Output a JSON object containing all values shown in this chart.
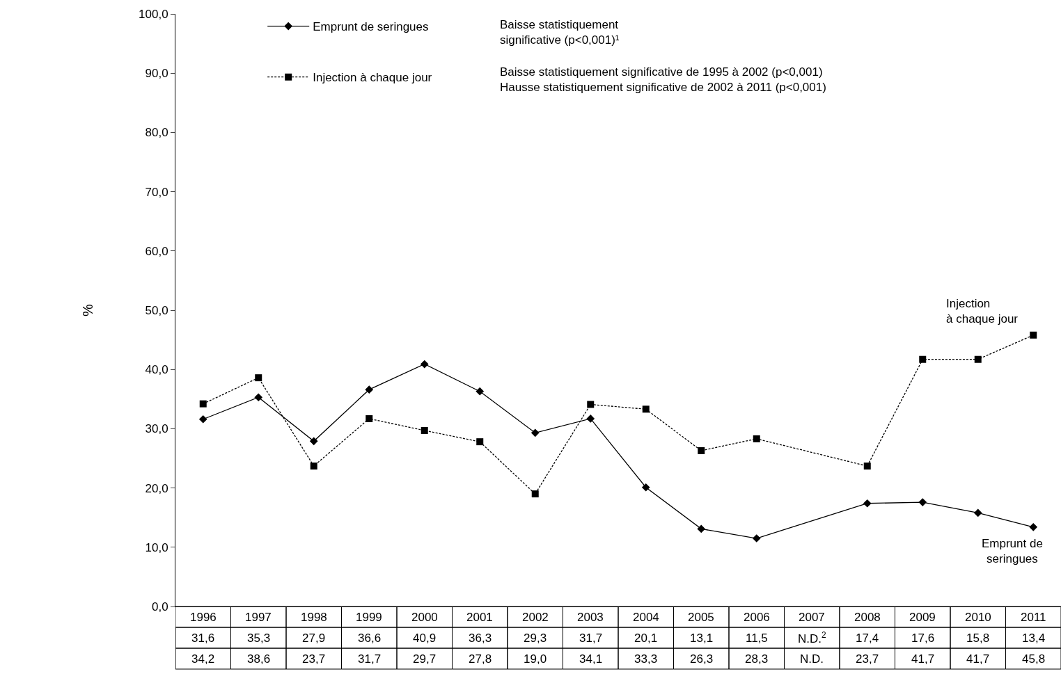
{
  "chart_data": {
    "type": "line",
    "ylabel": "%",
    "categories": [
      "1996",
      "1997",
      "1998",
      "1999",
      "2000",
      "2001",
      "2002",
      "2003",
      "2004",
      "2005",
      "2006",
      "2007",
      "2008",
      "2009",
      "2010",
      "2011"
    ],
    "series": [
      {
        "name": "Emprunt de seringues",
        "color": "#000000",
        "marker": "diamond",
        "line_style": "solid",
        "values": [
          31.6,
          35.3,
          27.9,
          36.6,
          40.9,
          36.3,
          29.3,
          31.7,
          20.1,
          13.1,
          11.5,
          null,
          17.4,
          17.6,
          15.8,
          13.4
        ],
        "value_labels": [
          "31,6",
          "35,3",
          "27,9",
          "36,6",
          "40,9",
          "36,3",
          "29,3",
          "31,7",
          "20,1",
          "13,1",
          "11,5",
          "N.D.$^{2}$",
          "17,4",
          "17,6",
          "15,8",
          "13,4"
        ]
      },
      {
        "name": "Injection à chaque jour",
        "color": "#000000",
        "marker": "square",
        "line_style": "dotted",
        "values": [
          34.2,
          38.6,
          23.7,
          31.7,
          29.7,
          27.8,
          19.0,
          34.1,
          33.3,
          26.3,
          28.3,
          null,
          23.7,
          41.7,
          41.7,
          45.8
        ],
        "value_labels": [
          "34,2",
          "38,6",
          "23,7",
          "31,7",
          "29,7",
          "27,8",
          "19,0",
          "34,1",
          "33,3",
          "26,3",
          "28,3",
          "N.D.",
          "23,7",
          "41,7",
          "41,7",
          "45,8"
        ]
      }
    ],
    "ylim": [
      0,
      100
    ],
    "yticks": [
      {
        "value": 0,
        "label": "0,0"
      },
      {
        "value": 10,
        "label": "10,0"
      },
      {
        "value": 20,
        "label": "20,0"
      },
      {
        "value": 30,
        "label": "30,0"
      },
      {
        "value": 40,
        "label": "40,0"
      },
      {
        "value": 50,
        "label": "50,0"
      },
      {
        "value": 60,
        "label": "60,0"
      },
      {
        "value": 70,
        "label": "70,0"
      },
      {
        "value": 80,
        "label": "80,0"
      },
      {
        "value": 90,
        "label": "90,0"
      },
      {
        "value": 100,
        "label": "100,0"
      }
    ],
    "annotations": [
      "Baisse statistiquement\nsignificative (p<0,001)¹",
      "Baisse statistiquement significative de 1995 à 2002 (p<0,001)\nHausse statistiquement significative de 2002 à 2011 (p<0,001)"
    ],
    "grid": false,
    "legend": "top",
    "data_labels": true
  }
}
